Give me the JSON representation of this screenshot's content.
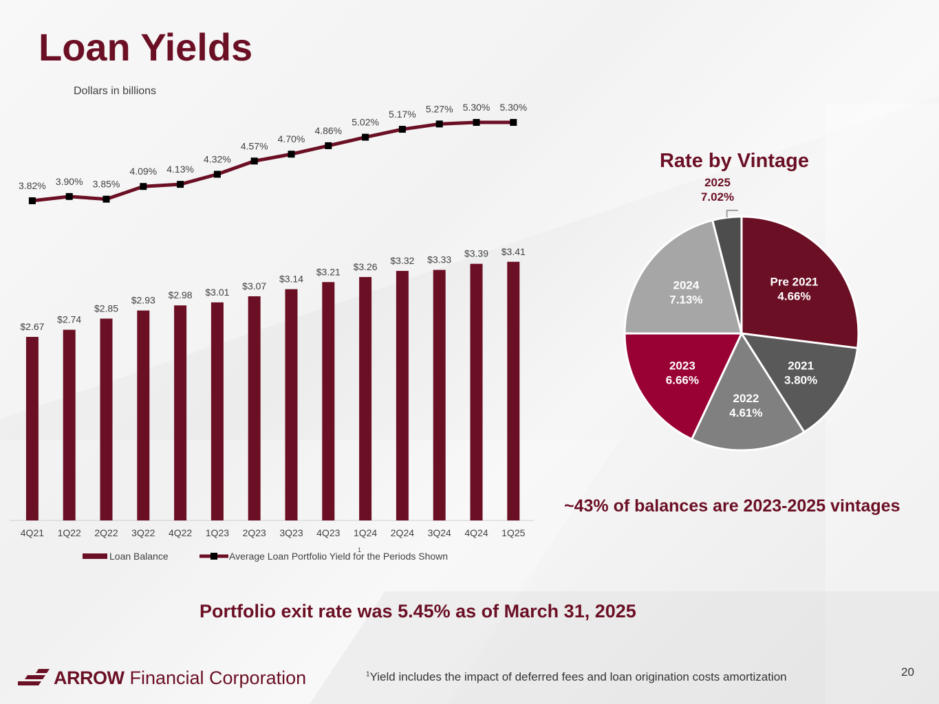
{
  "page": {
    "title": "Loan Yields",
    "subtitle": "Dollars in billions",
    "pie_title": "Rate by Vintage",
    "vintage_note": "~43% of balances are 2023-2025 vintages",
    "exit_rate_note": "Portfolio exit rate was 5.45% as of March 31, 2025",
    "footnote_marker": "1",
    "footnote_text": "Yield includes the impact of deferred fees and loan origination costs amortization",
    "page_number": "20",
    "logo_brand": "ARROW",
    "logo_rest": "Financial Corporation"
  },
  "colors": {
    "maroon": "#6b0f24",
    "crimson": "#990033",
    "dark_gray": "#595959",
    "mid_gray": "#808080",
    "light_gray": "#a6a6a6",
    "charcoal": "#4d4d4d"
  },
  "chart_data": [
    {
      "type": "bar",
      "categories": [
        "4Q21",
        "1Q22",
        "2Q22",
        "3Q22",
        "4Q22",
        "1Q23",
        "2Q23",
        "3Q23",
        "4Q23",
        "1Q24",
        "2Q24",
        "3Q24",
        "4Q24",
        "1Q25"
      ],
      "series": [
        {
          "name": "Loan Balance",
          "type": "bar",
          "values": [
            2.67,
            2.74,
            2.85,
            2.93,
            2.98,
            3.01,
            3.07,
            3.14,
            3.21,
            3.26,
            3.32,
            3.33,
            3.39,
            3.41
          ],
          "labels": [
            "$2.67",
            "$2.74",
            "$2.85",
            "$2.93",
            "$2.98",
            "$3.01",
            "$3.07",
            "$3.14",
            "$3.21",
            "$3.26",
            "$3.32",
            "$3.33",
            "$3.39",
            "$3.41"
          ]
        },
        {
          "name": "Average Loan Portfolio Yield for the Periods Shown",
          "name_superscript": "1",
          "type": "line",
          "values": [
            3.82,
            3.9,
            3.85,
            4.09,
            4.13,
            4.32,
            4.57,
            4.7,
            4.86,
            5.02,
            5.17,
            5.27,
            5.3,
            5.3
          ],
          "labels": [
            "3.82%",
            "3.90%",
            "3.85%",
            "4.09%",
            "4.13%",
            "4.32%",
            "4.57%",
            "4.70%",
            "4.86%",
            "5.02%",
            "5.17%",
            "5.27%",
            "5.30%",
            "5.30%"
          ]
        }
      ],
      "legend_position": "bottom",
      "grid": false
    },
    {
      "type": "pie",
      "title": "Rate by Vintage",
      "slices": [
        {
          "label": "Pre 2021",
          "rate": "4.66%",
          "share": 27.0,
          "color": "#6b0f24"
        },
        {
          "label": "2021",
          "rate": "3.80%",
          "share": 14.0,
          "color": "#595959"
        },
        {
          "label": "2022",
          "rate": "4.61%",
          "share": 16.0,
          "color": "#808080"
        },
        {
          "label": "2023",
          "rate": "6.66%",
          "share": 18.0,
          "color": "#990033"
        },
        {
          "label": "2024",
          "rate": "7.13%",
          "share": 21.0,
          "color": "#a6a6a6"
        },
        {
          "label": "2025",
          "rate": "7.02%",
          "share": 4.0,
          "color": "#4d4d4d"
        }
      ]
    }
  ]
}
